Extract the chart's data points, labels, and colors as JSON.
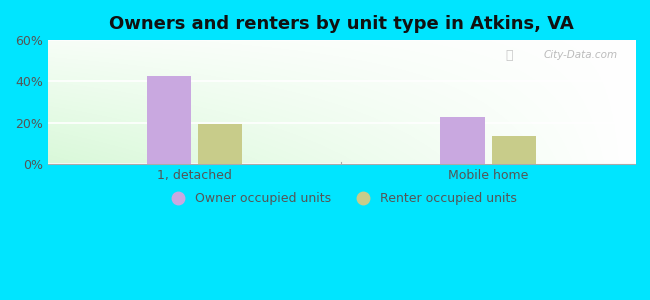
{
  "title": "Owners and renters by unit type in Atkins, VA",
  "categories": [
    "1, detached",
    "Mobile home"
  ],
  "owner_values": [
    42.5,
    23.0
  ],
  "renter_values": [
    19.5,
    13.5
  ],
  "owner_color": "#c9a8e0",
  "renter_color": "#c8cc8a",
  "ylim": [
    0,
    60
  ],
  "yticks": [
    0,
    20,
    40,
    60
  ],
  "ytick_labels": [
    "0%",
    "20%",
    "40%",
    "60%"
  ],
  "bar_width": 0.3,
  "x_positions": [
    1,
    3
  ],
  "xlim": [
    0,
    4
  ],
  "bg_left_color": "#d6efd6",
  "bg_right_color": "#f0faee",
  "outer_bg": "#00e5ff",
  "legend_labels": [
    "Owner occupied units",
    "Renter occupied units"
  ],
  "watermark": "City-Data.com",
  "title_fontsize": 13,
  "tick_fontsize": 9,
  "legend_fontsize": 9
}
